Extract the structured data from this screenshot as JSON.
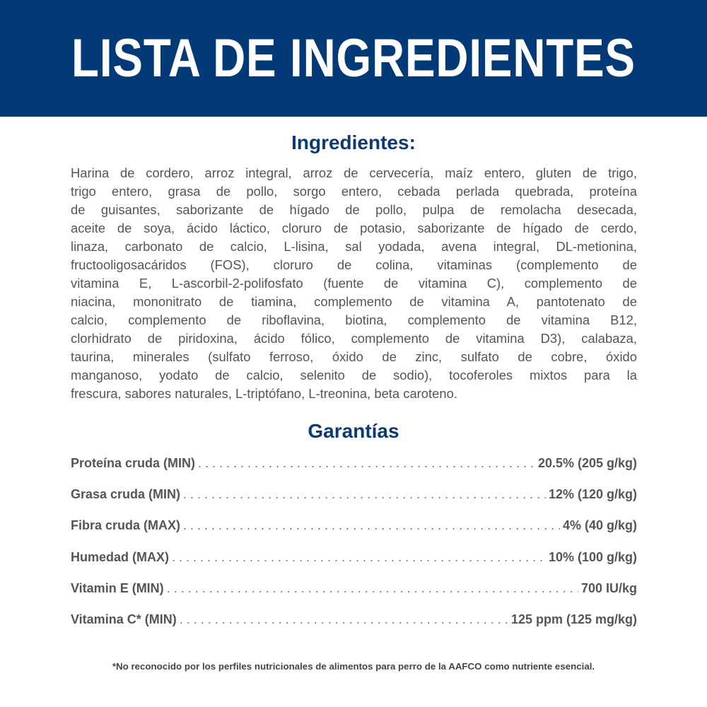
{
  "header": {
    "title": "LISTA DE INGREDIENTES",
    "background_color": "#023a78"
  },
  "ingredients": {
    "title": "Ingredientes:",
    "lines": [
      "Harina de cordero, arroz integral, arroz de cervecería, maíz entero, gluten de trigo,",
      "trigo entero, grasa de pollo, sorgo entero, cebada perlada quebrada, proteína",
      "de guisantes, saborizante de hígado de pollo, pulpa de remolacha desecada,",
      "aceite de soya, ácido láctico, cloruro de potasio, saborizante de hígado de cerdo,",
      "linaza, carbonato de calcio, L-lisina, sal yodada, avena integral, DL-metionina,",
      "fructooligosacáridos (FOS), cloruro de colina, vitaminas (complemento de",
      "vitamina E, L-ascorbil-2-polifosfato (fuente de vitamina C), complemento de",
      "niacina, mononitrato de tiamina, complemento de vitamina A, pantotenato de",
      "calcio, complemento de riboflavina, biotina, complemento de vitamina B12,",
      "clorhidrato de piridoxina, ácido fólico, complemento de vitamina D3), calabaza,",
      "taurina, minerales (sulfato ferroso, óxido de zinc, sulfato de cobre, óxido",
      "manganoso, yodato de calcio, selenito de sodio), tocoferoles mixtos para la",
      "frescura, sabores naturales, L-triptófano, L-treonina, beta caroteno."
    ]
  },
  "guarantees": {
    "title": "Garantías",
    "rows": [
      {
        "label": "Proteína cruda (MIN)",
        "value": "20.5% (205 g/kg)"
      },
      {
        "label": "Grasa cruda (MIN)",
        "value": "12% (120 g/kg)"
      },
      {
        "label": "Fibra cruda (MAX)",
        "value": "4% (40 g/kg)"
      },
      {
        "label": "Humedad (MAX)",
        "value": "10% (100 g/kg)"
      },
      {
        "label": "Vitamin E (MIN)",
        "value": "700 IU/kg"
      },
      {
        "label": "Vitamina C* (MIN)",
        "value": "125 ppm (125 mg/kg)"
      }
    ]
  },
  "footer": {
    "note": "*No reconocido por los perfiles nutricionales de alimentos para perro de la AAFCO como nutriente esencial."
  }
}
